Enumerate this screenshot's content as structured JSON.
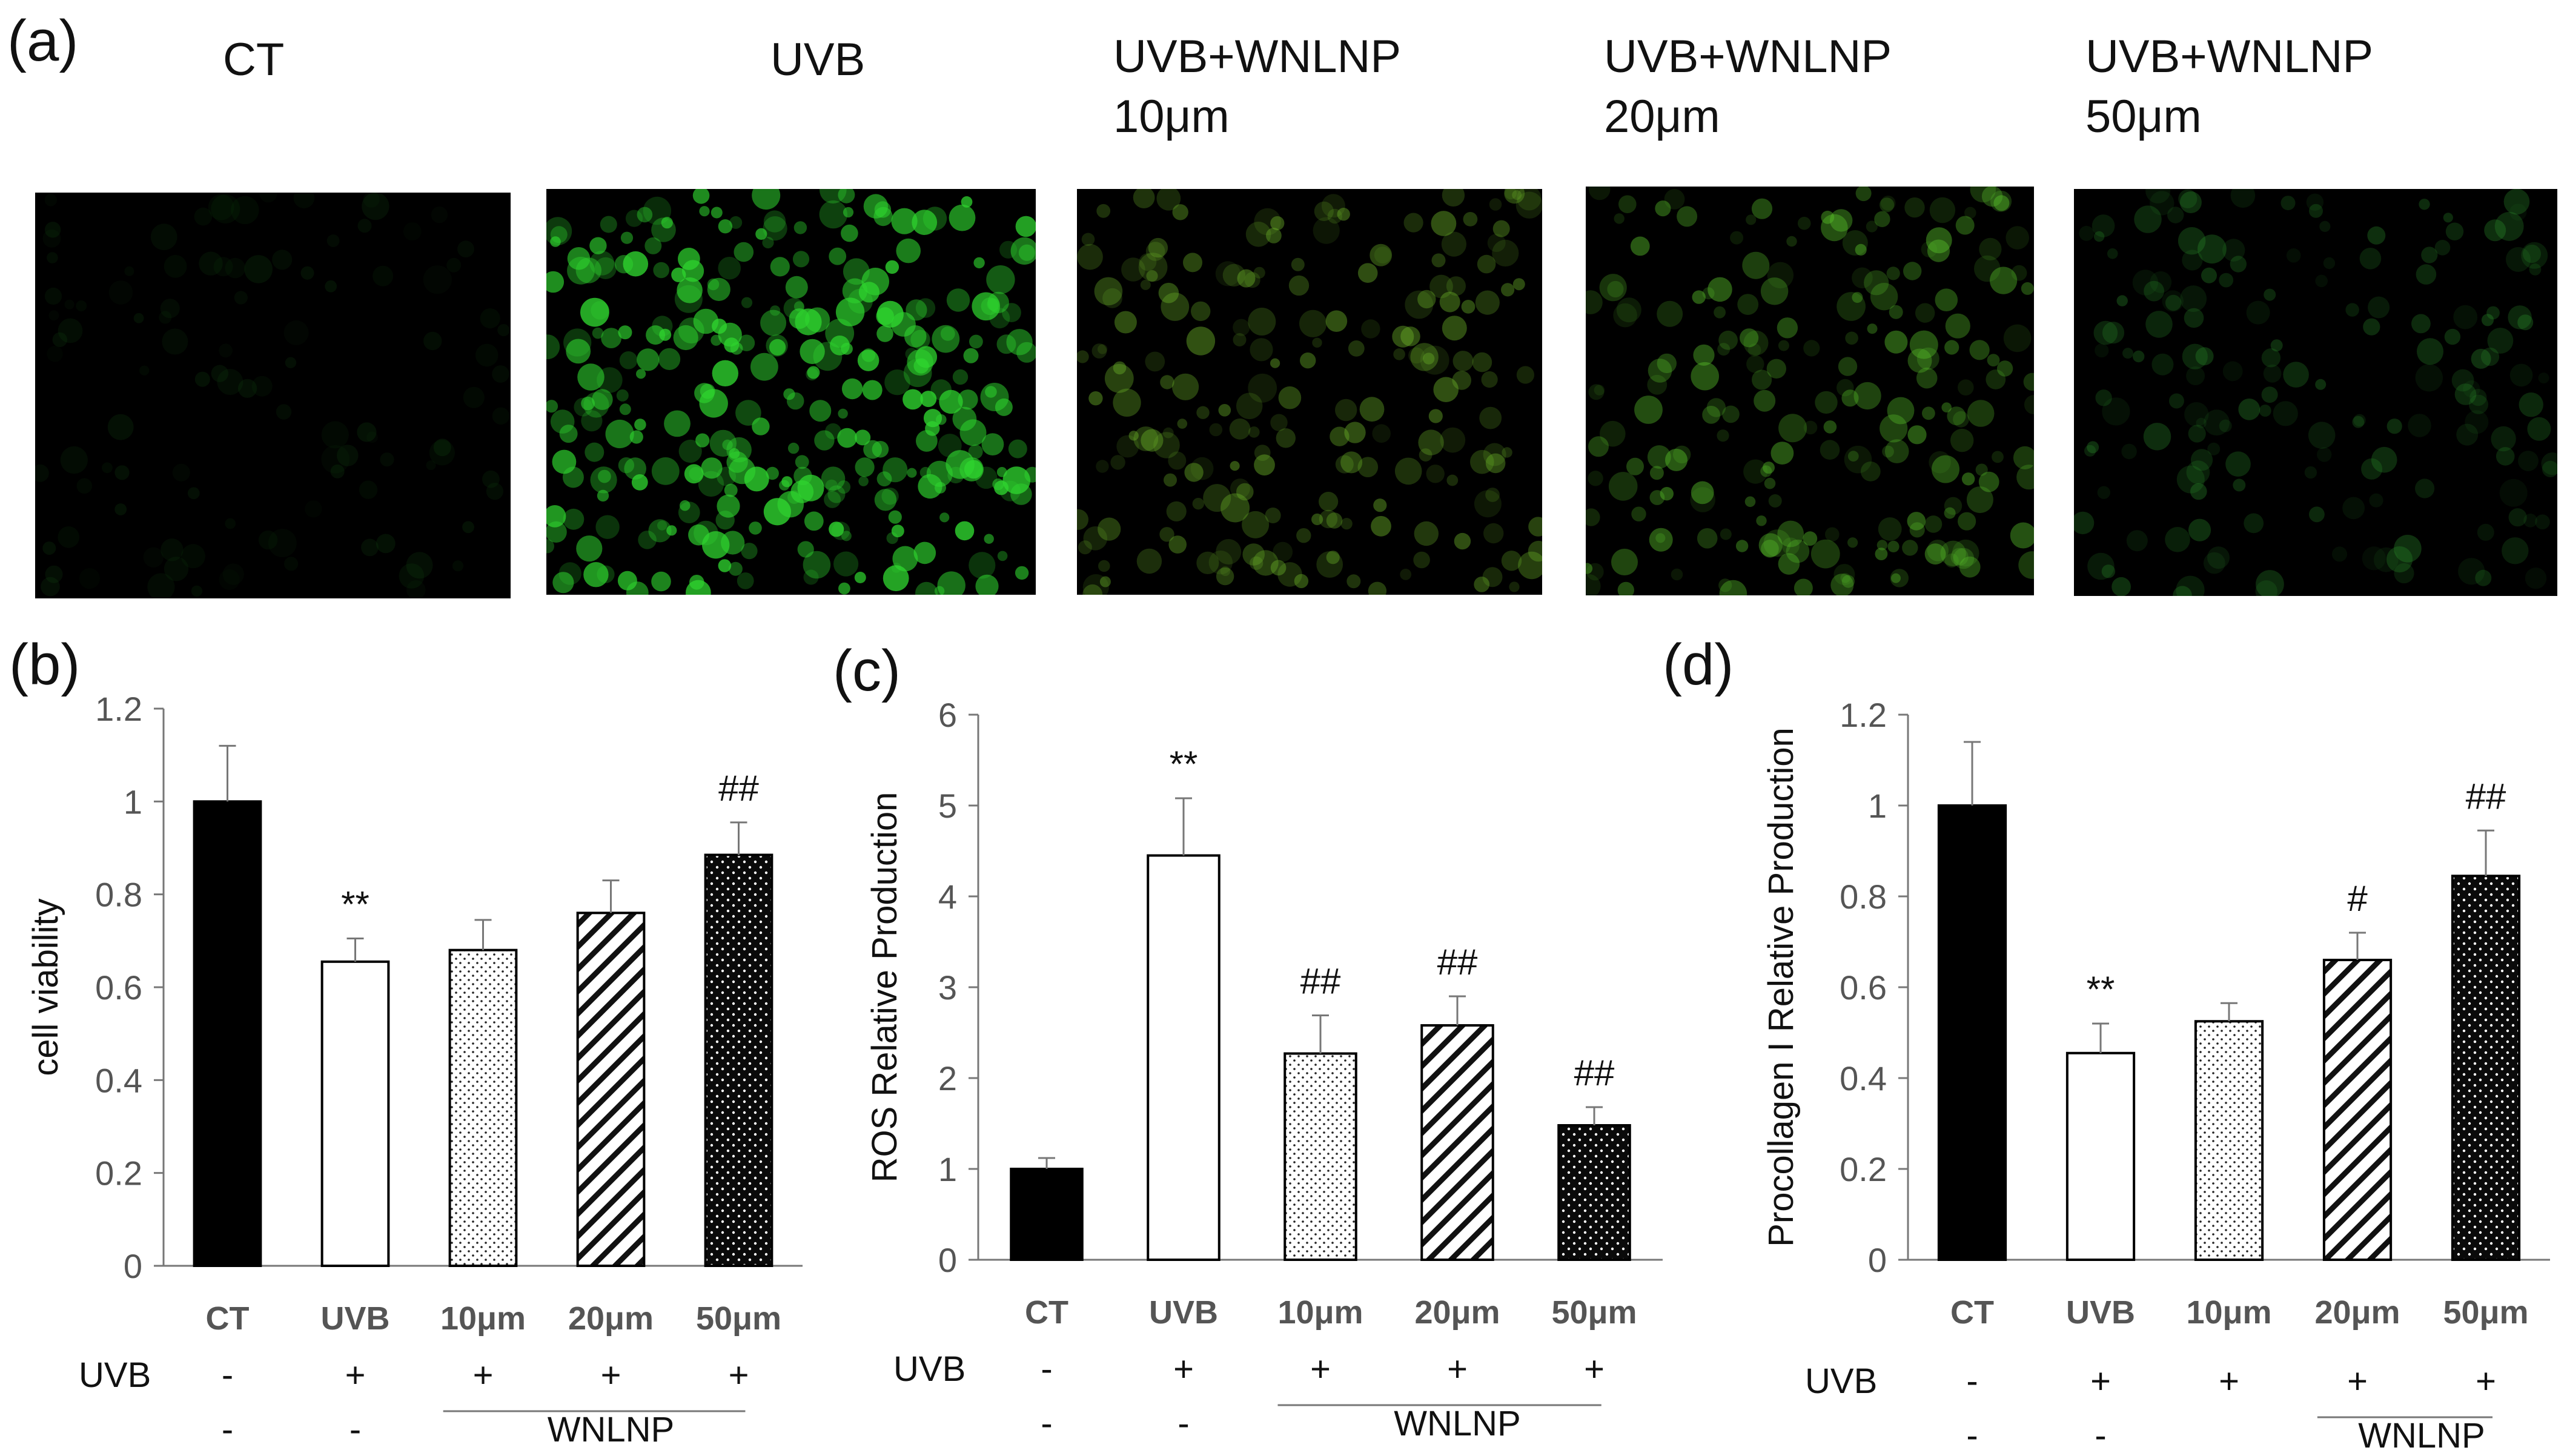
{
  "panel_a": {
    "letter": "(a)",
    "columns": [
      {
        "label": "CT",
        "intensity": 0.18
      },
      {
        "label": "UVB",
        "intensity": 1.0
      },
      {
        "label": "UVB+WNLNP\n10μm",
        "intensity": 0.55
      },
      {
        "label": "UVB+WNLNP\n20μm",
        "intensity": 0.58
      },
      {
        "label": "UVB+WNLNP\n50μm",
        "intensity": 0.4
      }
    ]
  },
  "chart_data": [
    {
      "type": "bar",
      "panel": "(b)",
      "ylabel": "cell viability",
      "ylim": [
        0,
        1.2
      ],
      "yticks": [
        "0",
        "0.2",
        "0.4",
        "0.6",
        "0.8",
        "1",
        "1.2"
      ],
      "categories": [
        "CT",
        "UVB",
        "10μm",
        "20μm",
        "50μm"
      ],
      "values": [
        1.0,
        0.655,
        0.68,
        0.76,
        0.885
      ],
      "errors": [
        0.12,
        0.05,
        0.065,
        0.07,
        0.07
      ],
      "annotations": [
        "",
        "**",
        "",
        "",
        "##"
      ],
      "patterns": [
        "solid",
        "white",
        "dots",
        "hatch",
        "dark-dots"
      ],
      "uvb_row": [
        "-",
        "+",
        "+",
        "+",
        "+"
      ],
      "wnlnp_row": [
        "-",
        "-"
      ],
      "wnlnp_label": "WNLNP",
      "uvb_label": "UVB"
    },
    {
      "type": "bar",
      "panel": "(c)",
      "ylabel": "ROS  Relative Production",
      "ylim": [
        0,
        6
      ],
      "yticks": [
        "0",
        "1",
        "2",
        "3",
        "4",
        "5",
        "6"
      ],
      "categories": [
        "CT",
        "UVB",
        "10μm",
        "20μm",
        "50μm"
      ],
      "values": [
        1.0,
        4.45,
        2.27,
        2.58,
        1.48
      ],
      "errors": [
        0.12,
        0.63,
        0.42,
        0.32,
        0.2
      ],
      "annotations": [
        "",
        "**",
        "##",
        "##",
        "##"
      ],
      "patterns": [
        "solid",
        "white",
        "dots",
        "hatch",
        "dark-dots"
      ],
      "uvb_row": [
        "-",
        "+",
        "+",
        "+",
        "+"
      ],
      "wnlnp_row": [
        "-",
        "-"
      ],
      "wnlnp_label": "WNLNP",
      "uvb_label": "UVB"
    },
    {
      "type": "bar",
      "panel": "(d)",
      "ylabel": "Procollagen I  Relative Production",
      "ylim": [
        0,
        1.2
      ],
      "yticks": [
        "0",
        "0.2",
        "0.4",
        "0.6",
        "0.8",
        "1",
        "1.2"
      ],
      "categories": [
        "CT",
        "UVB",
        "10μm",
        "20μm",
        "50μm"
      ],
      "values": [
        1.0,
        0.455,
        0.525,
        0.66,
        0.845
      ],
      "errors": [
        0.14,
        0.065,
        0.04,
        0.06,
        0.1
      ],
      "annotations": [
        "",
        "**",
        "",
        "#",
        "##"
      ],
      "patterns": [
        "solid",
        "white",
        "dots",
        "hatch",
        "dark-dots"
      ],
      "uvb_row": [
        "-",
        "+",
        "+",
        "+",
        "+"
      ],
      "wnlnp_row": [
        "-",
        "-"
      ],
      "wnlnp_label": "WNLNP",
      "uvb_label": "UVB"
    }
  ]
}
